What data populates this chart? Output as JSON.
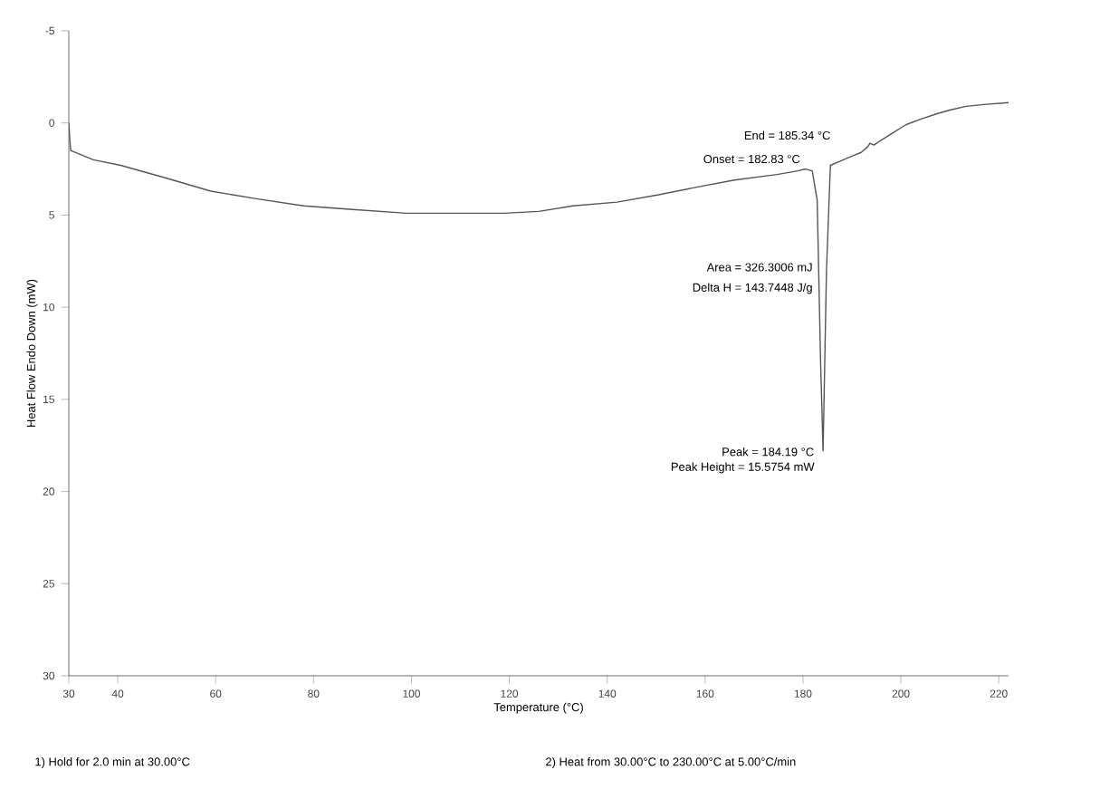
{
  "chart_data": {
    "type": "line",
    "xlabel": "Temperature (°C)",
    "ylabel": "Heat Flow Endo Down (mW)",
    "xlim": [
      30,
      222
    ],
    "ylim": [
      30,
      -5
    ],
    "xticks": [
      30,
      40,
      60,
      80,
      100,
      120,
      140,
      160,
      180,
      200,
      220
    ],
    "yticks": [
      -5,
      0,
      5,
      10,
      15,
      20,
      25,
      30
    ],
    "grid": false,
    "marker": "none",
    "line_style": "solid",
    "series": [
      {
        "color": "#555555",
        "x": [
          30,
          30.2,
          30.4,
          35,
          40.6,
          50,
          59,
          68,
          78,
          88,
          99,
          110,
          119,
          126,
          133,
          142,
          150.5,
          158,
          166,
          174.7,
          178.9,
          180.5,
          181.9,
          182.9,
          183.6,
          184.1,
          184.8,
          185.6,
          187.4,
          190,
          191.9,
          193.2,
          193.7,
          194.5,
          195.6,
          198,
          201,
          204,
          207.4,
          210,
          213.3,
          217,
          222
        ],
        "values": [
          0,
          0.9,
          1.5,
          2.0,
          2.3,
          3.0,
          3.7,
          4.1,
          4.5,
          4.7,
          4.9,
          4.9,
          4.9,
          4.8,
          4.5,
          4.3,
          3.9,
          3.5,
          3.1,
          2.8,
          2.6,
          2.5,
          2.6,
          4.2,
          13,
          17.8,
          8,
          2.3,
          2.1,
          1.8,
          1.6,
          1.3,
          1.1,
          1.2,
          1.0,
          0.6,
          0.1,
          -0.2,
          -0.5,
          -0.7,
          -0.9,
          -1.0,
          -1.1
        ]
      }
    ],
    "annotations": [
      {
        "text": "Onset = 182.83 °C",
        "x": 182.83,
        "y": 2.4
      },
      {
        "text": "End = 185.34 °C",
        "x": 185.34,
        "y": 2.2
      },
      {
        "text": "Peak = 184.19 °C",
        "x": 184.19,
        "y": 17.8
      },
      "Peak Height = 15.5754 mW",
      "Area = 326.3006 mJ",
      "Delta H = 143.7448 J/g",
      "1)  Hold for 2.0 min at 30.00°C",
      "2)  Heat from 30.00°C to 230.00°C at 5.00°C/min"
    ]
  }
}
